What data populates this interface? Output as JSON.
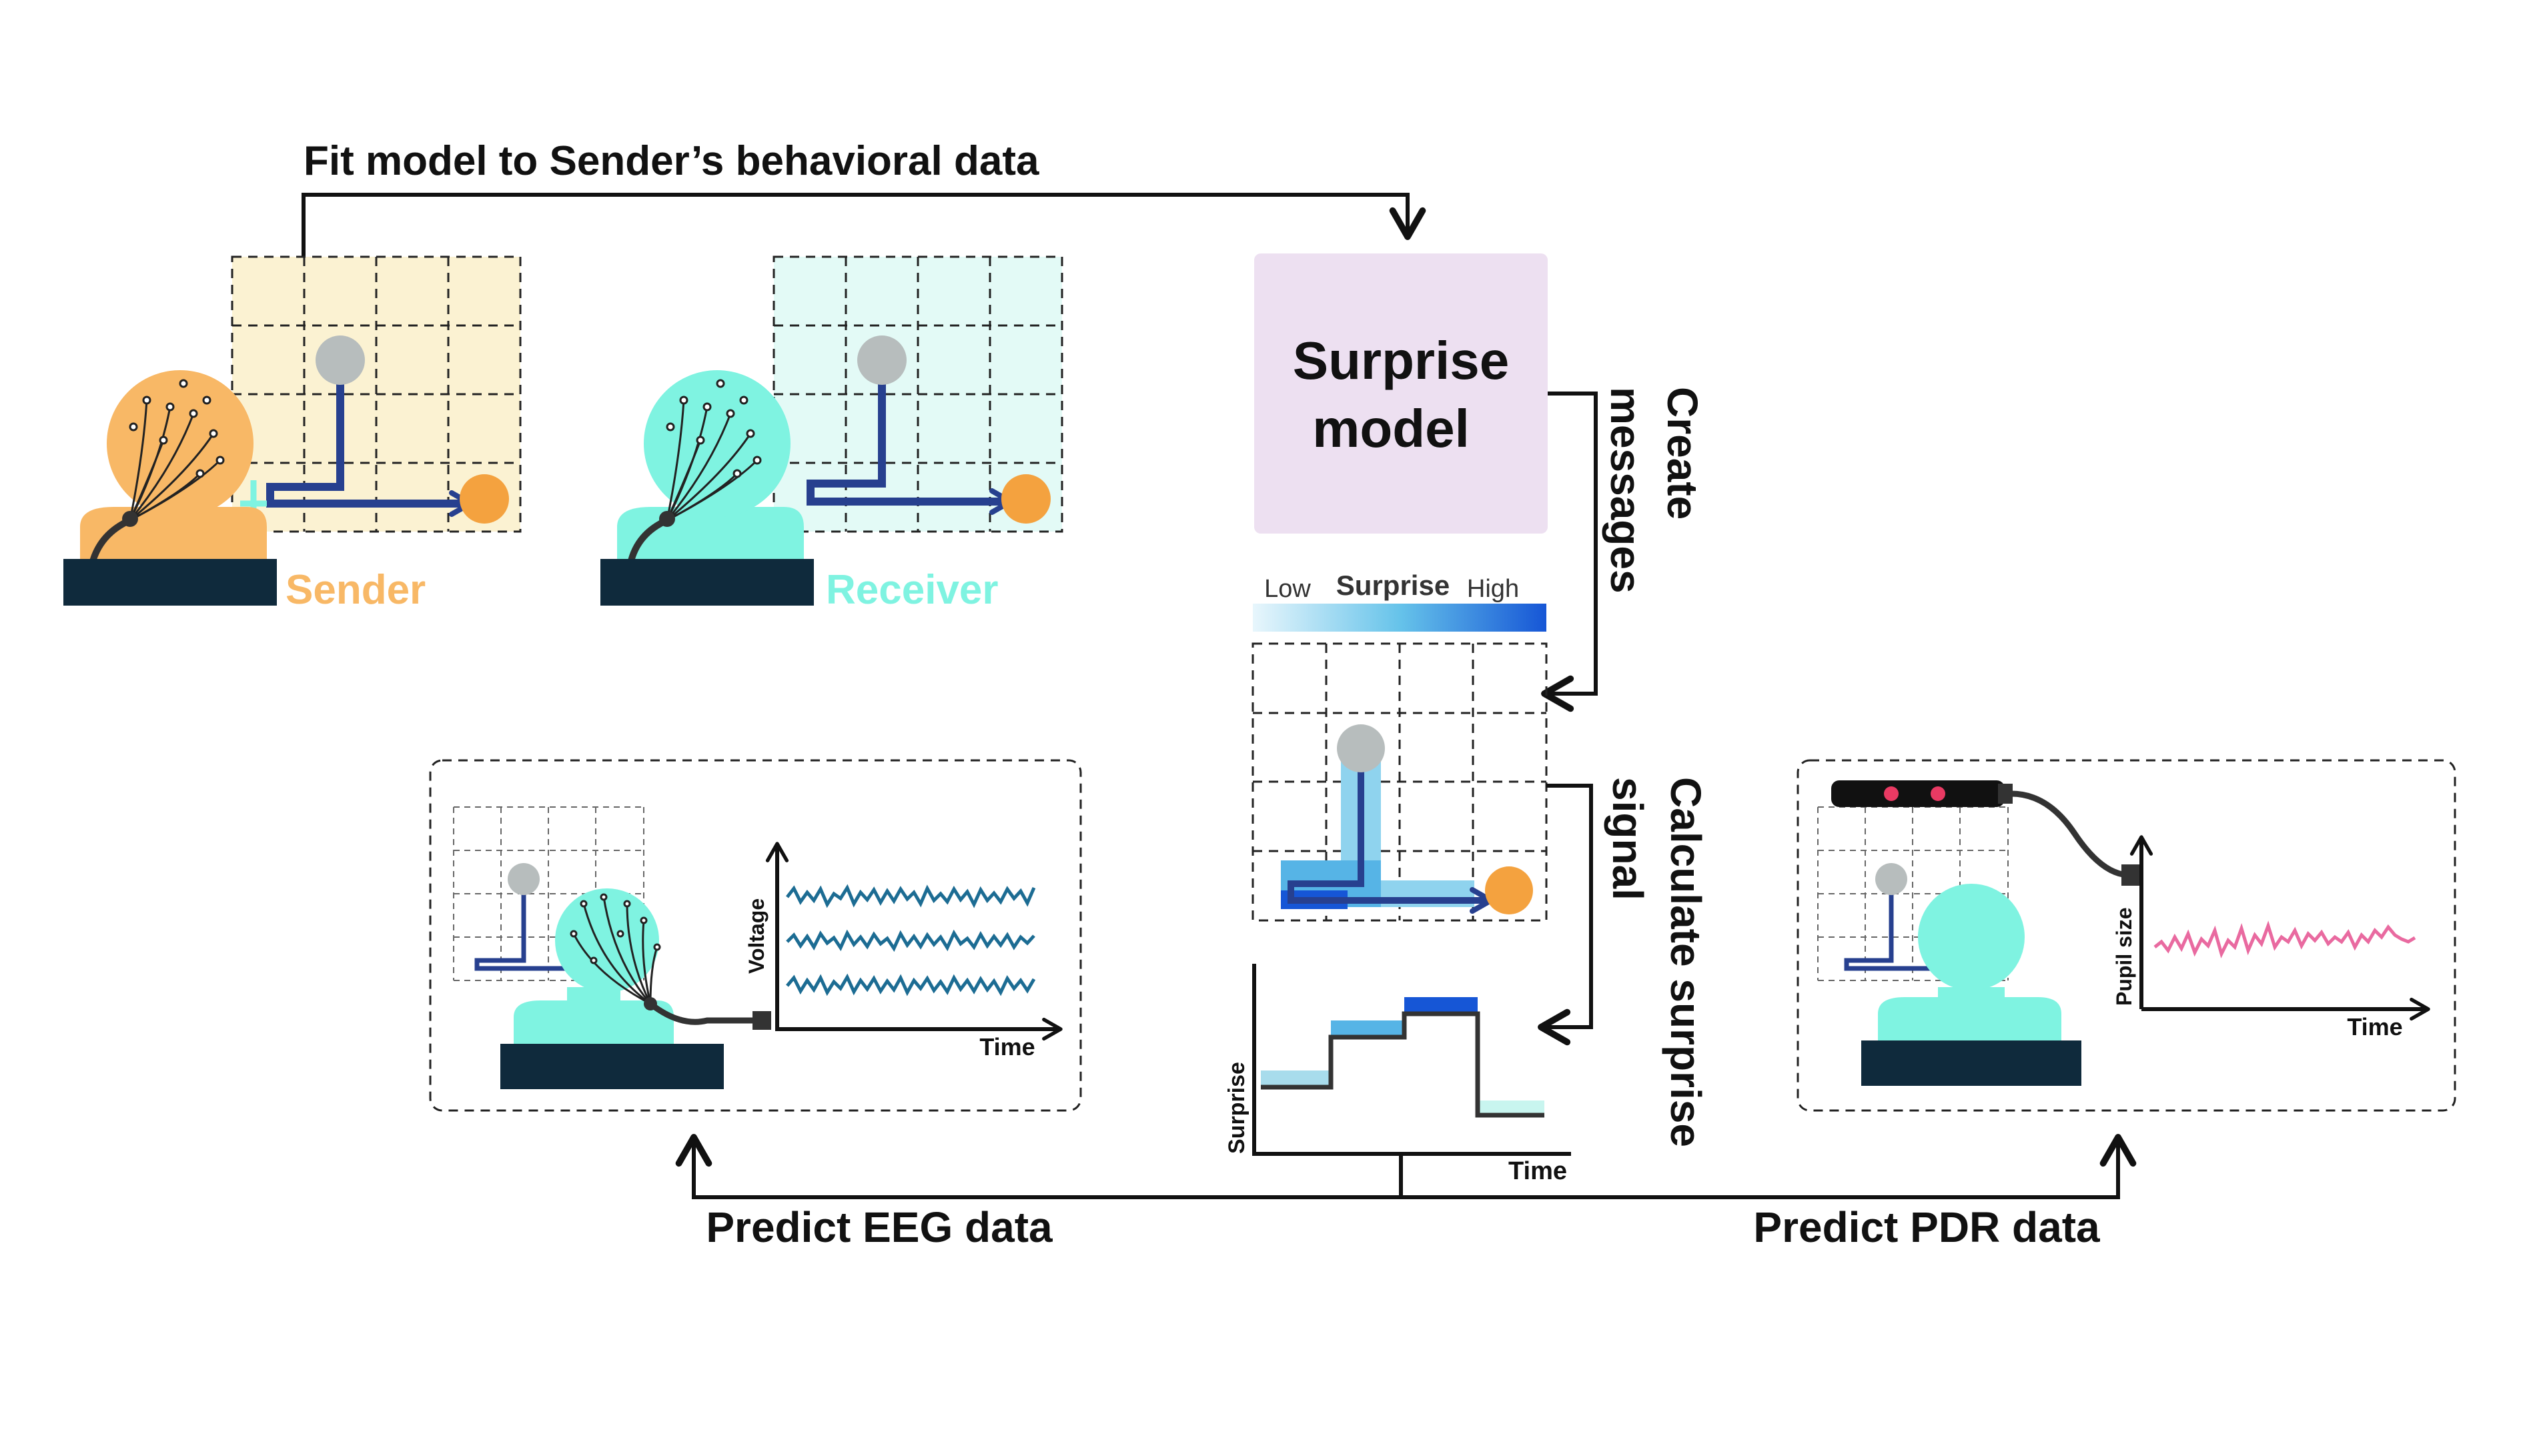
{
  "colors": {
    "sender": "#F8B866",
    "receiver": "#7FF3E1",
    "sender_grid": "#FBF2D2",
    "receiver_grid": "#E3FAF6",
    "path": "#27408F",
    "goal": "#F4A23F",
    "start": "#B7BDBD",
    "model_box": "#EDE0F1",
    "desk": "#0F2A3C",
    "eeg_trace": "#1C6C93",
    "pupil_trace": "#E96AA0"
  },
  "labels": {
    "fit_model": "Fit model to Sender’s behavioral data",
    "sender": "Sender",
    "receiver": "Receiver",
    "surprise_model_line1": "Surprise",
    "surprise_model_line2": "model",
    "create_messages_line1": "Create",
    "create_messages_line2": "messages",
    "calculate_line1": "Calculate surprise",
    "calculate_line2": "signal",
    "colorbar_low": "Low",
    "colorbar_title": "Surprise",
    "colorbar_high": "High",
    "eeg_ylabel": "Voltage",
    "eeg_xlabel": "Time",
    "surprise_ylabel": "Surprise",
    "surprise_xlabel": "Time",
    "pdr_ylabel": "Pupil size",
    "pdr_xlabel": "Time",
    "predict_eeg": "Predict EEG data",
    "predict_pdr": "Predict PDR data"
  },
  "icons": [
    "eeg-cap-icon",
    "eye-tracker-icon",
    "arrow-icon"
  ]
}
